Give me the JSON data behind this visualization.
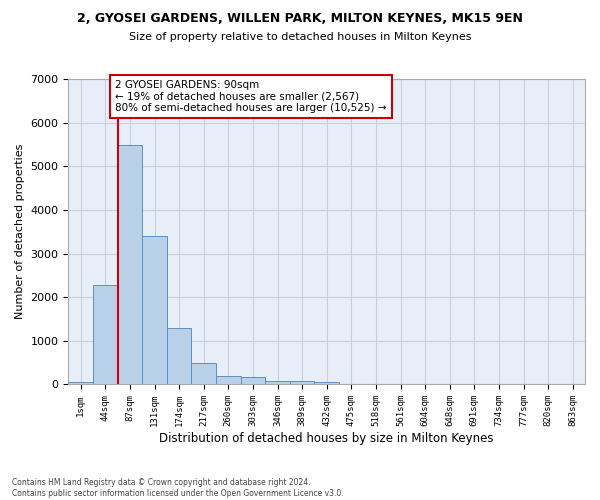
{
  "title_line1": "2, GYOSEI GARDENS, WILLEN PARK, MILTON KEYNES, MK15 9EN",
  "title_line2": "Size of property relative to detached houses in Milton Keynes",
  "xlabel": "Distribution of detached houses by size in Milton Keynes",
  "ylabel": "Number of detached properties",
  "footnote": "Contains HM Land Registry data © Crown copyright and database right 2024.\nContains public sector information licensed under the Open Government Licence v3.0.",
  "bar_labels": [
    "1sqm",
    "44sqm",
    "87sqm",
    "131sqm",
    "174sqm",
    "217sqm",
    "260sqm",
    "303sqm",
    "346sqm",
    "389sqm",
    "432sqm",
    "475sqm",
    "518sqm",
    "561sqm",
    "604sqm",
    "648sqm",
    "691sqm",
    "734sqm",
    "777sqm",
    "820sqm",
    "863sqm"
  ],
  "bar_values": [
    60,
    2280,
    5480,
    3400,
    1300,
    490,
    200,
    175,
    90,
    70,
    55,
    0,
    0,
    0,
    0,
    0,
    0,
    0,
    0,
    0,
    0
  ],
  "bar_color": "#b8d0e8",
  "bar_edge_color": "#6090c0",
  "background_color": "#e8eef8",
  "grid_color": "#c8d0e0",
  "ylim": [
    0,
    7000
  ],
  "yticks": [
    0,
    1000,
    2000,
    3000,
    4000,
    5000,
    6000,
    7000
  ],
  "vline_x": 1.5,
  "vline_color": "#cc0000",
  "annotation_text": "2 GYOSEI GARDENS: 90sqm\n← 19% of detached houses are smaller (2,567)\n80% of semi-detached houses are larger (10,525) →",
  "annotation_box_color": "#ffffff",
  "annotation_border_color": "#cc0000",
  "figsize": [
    6.0,
    5.0
  ],
  "dpi": 100
}
